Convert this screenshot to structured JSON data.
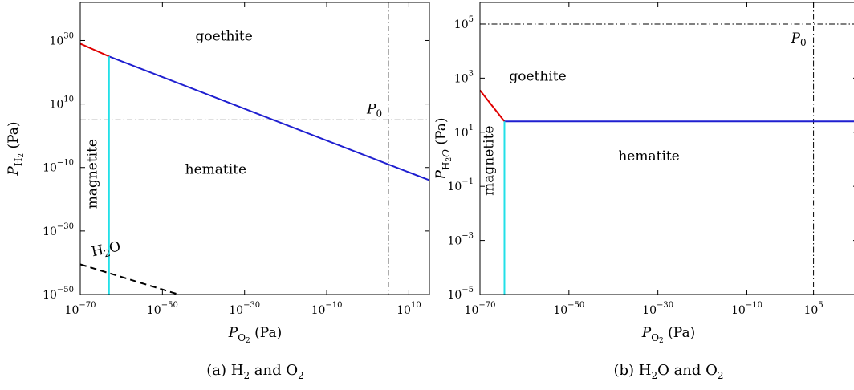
{
  "chart_data": [
    {
      "type": "line",
      "caption_tag": "(a)",
      "caption_text": "H",
      "caption_sub": "2",
      "caption_mid": " and O",
      "caption_sub2": "2",
      "xlabel_main": "P",
      "xlabel_sub": "O",
      "xlabel_subsub": "2",
      "xlabel_unit": " (Pa)",
      "ylabel_main": "P",
      "ylabel_sub": "H",
      "ylabel_subsub": "2",
      "ylabel_unit": " (Pa)",
      "x_scale": "log10",
      "y_scale": "log10",
      "xlim_exp": [
        -70,
        15
      ],
      "ylim_exp": [
        -50,
        42
      ],
      "x_ticks": [
        {
          "exp": -70,
          "base": "10",
          "label": "−70"
        },
        {
          "exp": -50,
          "base": "10",
          "label": "−50"
        },
        {
          "exp": -30,
          "base": "10",
          "label": "−30"
        },
        {
          "exp": -10,
          "base": "10",
          "label": "−10"
        },
        {
          "exp": 10,
          "base": "10",
          "label": "10"
        }
      ],
      "y_ticks": [
        {
          "exp": -50,
          "base": "10",
          "label": "−50"
        },
        {
          "exp": -30,
          "base": "10",
          "label": "−30"
        },
        {
          "exp": -10,
          "base": "10",
          "label": "−10"
        },
        {
          "exp": 10,
          "base": "10",
          "label": "10"
        },
        {
          "exp": 30,
          "base": "10",
          "label": "30"
        }
      ],
      "series": [
        {
          "color": "#e00000",
          "style": "solid",
          "points": [
            [
              -70,
              29.0
            ],
            [
              -63,
              25.0
            ]
          ]
        },
        {
          "color": "#1f1fd0",
          "style": "solid",
          "points": [
            [
              -63,
              25.0
            ],
            [
              15,
              -14.0
            ]
          ]
        },
        {
          "color": "#22e0e8",
          "style": "solid",
          "points": [
            [
              -63,
              25.0
            ],
            [
              -63,
              -50
            ]
          ]
        },
        {
          "color": "#000000",
          "style": "dashed",
          "points": [
            [
              -70,
              -40.5
            ],
            [
              -46,
              -50
            ]
          ]
        }
      ],
      "reference_lines": [
        {
          "axis": "y",
          "exp": 5,
          "label": "P",
          "label_sub": "0"
        },
        {
          "axis": "x",
          "exp": 5
        }
      ],
      "regions": [
        {
          "label": "goethite",
          "x_exp": -35,
          "y_exp": 30
        },
        {
          "label": "hematite",
          "x_exp": -37,
          "y_exp": -12
        },
        {
          "label": "magnetite",
          "x_exp": -66,
          "y_exp": -12,
          "rotate": true
        }
      ],
      "curve_label": {
        "main": "H",
        "sub": "2",
        "tail": "O",
        "x_exp": -67,
        "y_exp": -38
      }
    },
    {
      "type": "line",
      "caption_tag": "(b)",
      "caption_text": "H",
      "caption_sub": "2",
      "caption_mid": "O and O",
      "caption_sub2": "2",
      "xlabel_main": "P",
      "xlabel_sub": "O",
      "xlabel_subsub": "2",
      "xlabel_unit": " (Pa)",
      "ylabel_main": "P",
      "ylabel_sub": "H",
      "ylabel_subsub": "2",
      "ylabel_subtail": "O",
      "ylabel_unit": " (Pa)",
      "x_scale": "log10",
      "y_scale": "log10",
      "xlim_exp": [
        -70,
        15
      ],
      "ylim_exp": [
        -5,
        5.8
      ],
      "x_ticks": [
        {
          "exp": -70,
          "base": "10",
          "label": "−70"
        },
        {
          "exp": -50,
          "base": "10",
          "label": "−50"
        },
        {
          "exp": -30,
          "base": "10",
          "label": "−30"
        },
        {
          "exp": -10,
          "base": "10",
          "label": "−10"
        },
        {
          "exp": 5,
          "base": "10",
          "label": "5"
        }
      ],
      "y_ticks": [
        {
          "exp": -5,
          "base": "10",
          "label": "−5"
        },
        {
          "exp": -3,
          "base": "10",
          "label": "−3"
        },
        {
          "exp": -1,
          "base": "10",
          "label": "−1"
        },
        {
          "exp": 1,
          "base": "10",
          "label": "1"
        },
        {
          "exp": 3,
          "base": "10",
          "label": "3"
        },
        {
          "exp": 5,
          "base": "10",
          "label": "5"
        }
      ],
      "series": [
        {
          "color": "#e00000",
          "style": "solid",
          "points": [
            [
              -70,
              2.55
            ],
            [
              -64.5,
              1.4
            ]
          ]
        },
        {
          "color": "#1f1fd0",
          "style": "solid",
          "points": [
            [
              -64.5,
              1.4
            ],
            [
              15,
              1.4
            ]
          ]
        },
        {
          "color": "#22e0e8",
          "style": "solid",
          "points": [
            [
              -64.5,
              1.4
            ],
            [
              -64.5,
              -5
            ]
          ]
        }
      ],
      "reference_lines": [
        {
          "axis": "y",
          "exp": 5
        },
        {
          "axis": "x",
          "exp": 5,
          "label": "P",
          "label_sub": "0"
        }
      ],
      "regions": [
        {
          "label": "goethite",
          "x_exp": -57,
          "y_exp": 2.9
        },
        {
          "label": "hematite",
          "x_exp": -32,
          "y_exp": -0.05
        },
        {
          "label": "magnetite",
          "x_exp": -67,
          "y_exp": -0.05,
          "rotate": true
        }
      ]
    }
  ]
}
